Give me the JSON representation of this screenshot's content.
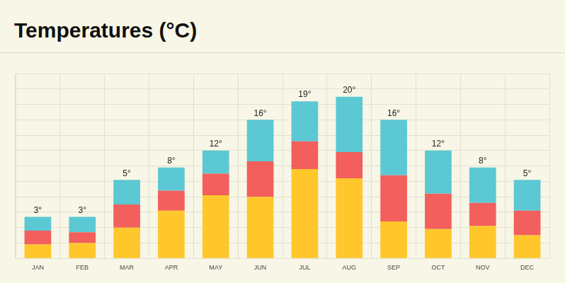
{
  "chart_data": {
    "type": "bar",
    "title": "Temperatures (°C)",
    "categories": [
      "JAN",
      "FEB",
      "MAR",
      "APR",
      "MAY",
      "JUN",
      "JUL",
      "AUG",
      "SEP",
      "OCT",
      "NOV",
      "DEC"
    ],
    "series": [
      {
        "color": "#ffc72c",
        "values": [
          0.9,
          1.0,
          2.0,
          3.1,
          4.1,
          4.0,
          5.8,
          5.2,
          2.4,
          1.9,
          2.1,
          1.5
        ]
      },
      {
        "color": "#f25f5c",
        "values": [
          0.9,
          0.7,
          1.5,
          1.3,
          1.4,
          2.3,
          1.8,
          1.7,
          3.0,
          2.3,
          1.5,
          1.6
        ]
      },
      {
        "color": "#5cc8d4",
        "values": [
          0.9,
          1.0,
          1.6,
          1.5,
          1.5,
          2.7,
          2.6,
          3.6,
          3.6,
          2.8,
          2.3,
          2.0
        ]
      }
    ],
    "annotations": [
      "3°",
      "3°",
      "5°",
      "8°",
      "12°",
      "16°",
      "19°",
      "20°",
      "16°",
      "12°",
      "8°",
      "5°"
    ],
    "ylim": [
      0,
      12
    ],
    "yticks": [
      0,
      1,
      2,
      3,
      4,
      5,
      6,
      7,
      8,
      9,
      10,
      11,
      12
    ],
    "stacked": true,
    "grid": true,
    "tick_labels": "x"
  }
}
